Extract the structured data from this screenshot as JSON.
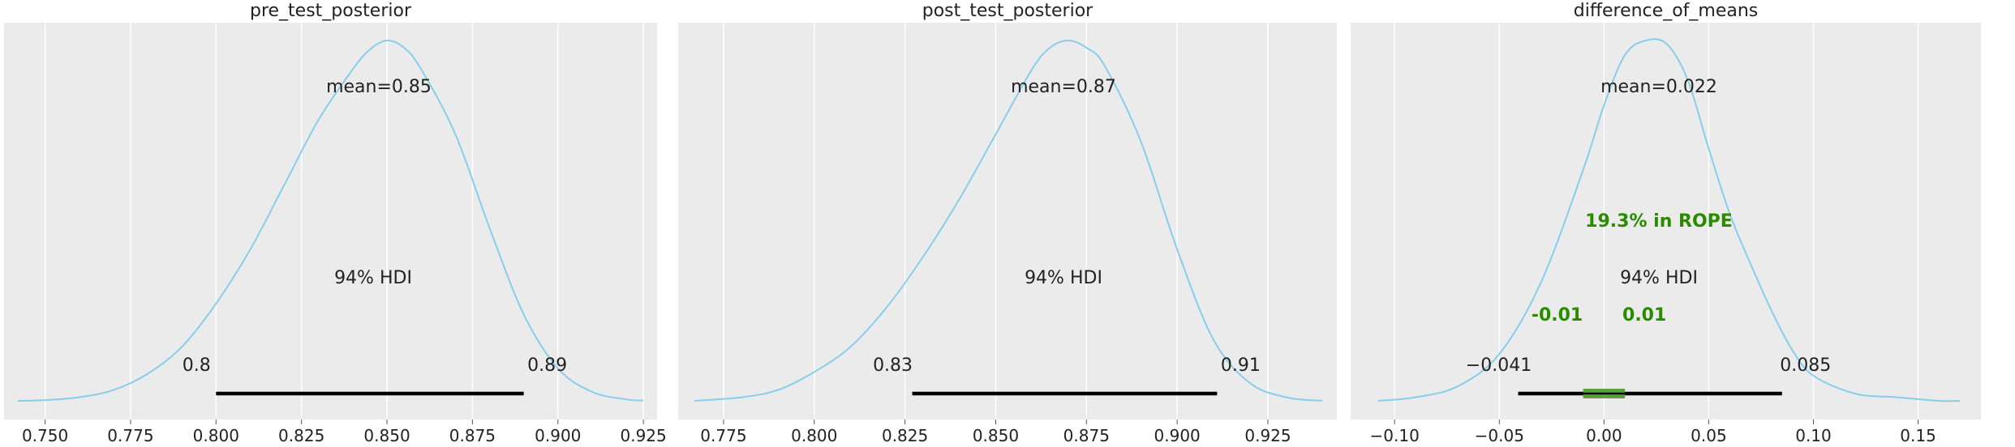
{
  "colors": {
    "background": "#ebebeb",
    "curve": "#87ceeb",
    "hdi_line": "#000000",
    "rope": "#2a8a00",
    "rope_bar": "#4a9a2e",
    "grid": "#ffffff",
    "text": "#222222"
  },
  "chart_data": [
    {
      "type": "area",
      "title": "pre_test_posterior",
      "xlabel": "",
      "ylabel": "",
      "xlim": [
        0.738,
        0.929
      ],
      "xticks": [
        0.75,
        0.775,
        0.8,
        0.825,
        0.85,
        0.875,
        0.9,
        0.925
      ],
      "xtick_labels": [
        "0.750",
        "0.775",
        "0.800",
        "0.825",
        "0.850",
        "0.875",
        "0.900",
        "0.925"
      ],
      "grid": true,
      "density": {
        "x": [
          0.742,
          0.75,
          0.76,
          0.77,
          0.78,
          0.79,
          0.8,
          0.81,
          0.82,
          0.83,
          0.84,
          0.845,
          0.85,
          0.855,
          0.86,
          0.87,
          0.88,
          0.89,
          0.9,
          0.91,
          0.92,
          0.925
        ],
        "y": [
          0.0,
          0.002,
          0.01,
          0.03,
          0.075,
          0.15,
          0.27,
          0.42,
          0.6,
          0.78,
          0.92,
          0.975,
          1.0,
          0.98,
          0.92,
          0.74,
          0.48,
          0.24,
          0.09,
          0.025,
          0.004,
          0.001
        ]
      },
      "mean_label": "mean=0.85",
      "hdi_label": "94% HDI",
      "hdi": [
        0.8,
        0.89
      ],
      "hdi_labels": [
        "0.8",
        "0.89"
      ]
    },
    {
      "type": "area",
      "title": "post_test_posterior",
      "xlabel": "",
      "ylabel": "",
      "xlim": [
        0.7625,
        0.944
      ],
      "xticks": [
        0.775,
        0.8,
        0.825,
        0.85,
        0.875,
        0.9,
        0.925
      ],
      "xtick_labels": [
        "0.775",
        "0.800",
        "0.825",
        "0.850",
        "0.875",
        "0.900",
        "0.925"
      ],
      "grid": true,
      "density": {
        "x": [
          0.767,
          0.78,
          0.79,
          0.8,
          0.81,
          0.82,
          0.83,
          0.84,
          0.85,
          0.86,
          0.865,
          0.87,
          0.875,
          0.88,
          0.89,
          0.9,
          0.91,
          0.92,
          0.93,
          0.94
        ],
        "y": [
          0.0,
          0.01,
          0.03,
          0.08,
          0.15,
          0.26,
          0.4,
          0.56,
          0.74,
          0.92,
          0.98,
          1.0,
          0.98,
          0.93,
          0.72,
          0.42,
          0.17,
          0.05,
          0.01,
          0.0
        ]
      },
      "mean_label": "mean=0.87",
      "hdi_label": "94% HDI",
      "hdi": [
        0.827,
        0.911
      ],
      "hdi_labels": [
        "0.83",
        "0.91"
      ]
    },
    {
      "type": "area",
      "title": "difference_of_means",
      "xlabel": "",
      "ylabel": "",
      "xlim": [
        -0.121,
        0.18
      ],
      "xticks": [
        -0.1,
        -0.05,
        0.0,
        0.05,
        0.1,
        0.15
      ],
      "xtick_labels": [
        "−0.10",
        "−0.05",
        "0.00",
        "0.05",
        "0.10",
        "0.15"
      ],
      "grid": true,
      "density": {
        "x": [
          -0.108,
          -0.09,
          -0.07,
          -0.05,
          -0.03,
          -0.01,
          0.0,
          0.01,
          0.02,
          0.03,
          0.04,
          0.05,
          0.06,
          0.07,
          0.08,
          0.09,
          0.1,
          0.12,
          0.14,
          0.16,
          0.17
        ],
        "y": [
          0.0,
          0.01,
          0.04,
          0.13,
          0.33,
          0.64,
          0.82,
          0.96,
          1.0,
          0.99,
          0.89,
          0.7,
          0.52,
          0.38,
          0.25,
          0.14,
          0.07,
          0.02,
          0.01,
          0.0,
          0.0
        ]
      },
      "mean_label": "mean=0.022",
      "hdi_label": "94% HDI",
      "hdi": [
        -0.041,
        0.085
      ],
      "hdi_labels": [
        "−0.041",
        "0.085"
      ],
      "rope": [
        -0.01,
        0.01
      ],
      "rope_labels": [
        "-0.01",
        "0.01"
      ],
      "rope_text": "19.3% in ROPE"
    }
  ]
}
